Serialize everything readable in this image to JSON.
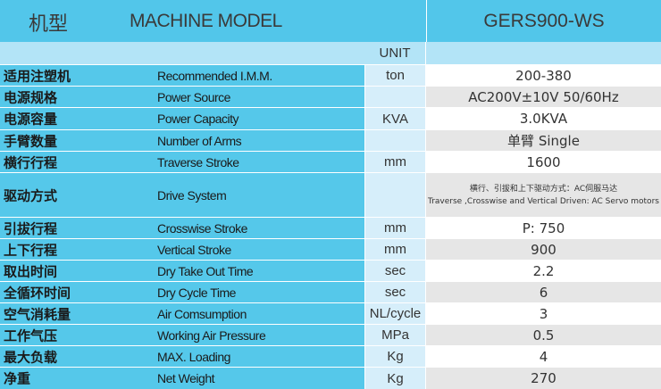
{
  "header": {
    "title_cn": "机型",
    "title_en": "MACHINE MODEL",
    "model": "GERS900-WS",
    "unit_label": "UNIT"
  },
  "colors": {
    "header": "#52c6ea",
    "unit_row": "#b3e4f7",
    "label_column": "#55c8ea",
    "unit_column": "#d6eefa",
    "value_alt": "#e6e6e6"
  },
  "rows": [
    {
      "cn": "适用注塑机",
      "en": "Recommended I.M.M.",
      "unit": "ton",
      "value": "200-380"
    },
    {
      "cn": "电源规格",
      "en": "Power Source",
      "unit": "",
      "value": "AC200V±10V 50/60Hz"
    },
    {
      "cn": "电源容量",
      "en": "Power Capacity",
      "unit": "KVA",
      "value": "3.0KVA"
    },
    {
      "cn": "手臂数量",
      "en": "Number of Arms",
      "unit": "",
      "value": "单臂  Single"
    },
    {
      "cn": "横行行程",
      "en": "Traverse Stroke",
      "unit": "mm",
      "value": "1600"
    },
    {
      "cn": "驱动方式",
      "en": "Drive System",
      "unit": "",
      "value": "横行、引拔和上下驱动方式：AC伺服马达",
      "value2": "Traverse ,Crosswise and Vertical Driven: AC Servo motors"
    },
    {
      "cn": "引拔行程",
      "en": "Crosswise Stroke",
      "unit": "mm",
      "value": "P: 750"
    },
    {
      "cn": "上下行程",
      "en": "Vertical Stroke",
      "unit": "mm",
      "value": "900"
    },
    {
      "cn": "取出时间",
      "en": "Dry Take Out Time",
      "unit": "sec",
      "value": "2.2"
    },
    {
      "cn": "全循环时间",
      "en": "Dry Cycle Time",
      "unit": "sec",
      "value": "6"
    },
    {
      "cn": "空气消耗量",
      "en": "Air Comsumption",
      "unit": "NL/cycle",
      "value": "3"
    },
    {
      "cn": "工作气压",
      "en": "Working Air Pressure",
      "unit": "MPa",
      "value": "0.5"
    },
    {
      "cn": "最大负载",
      "en": "MAX. Loading",
      "unit": "Kg",
      "value": "4"
    },
    {
      "cn": "净重",
      "en": "Net Weight",
      "unit": "Kg",
      "value": "270"
    }
  ]
}
